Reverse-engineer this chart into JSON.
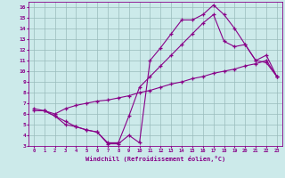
{
  "xlabel": "Windchill (Refroidissement éolien,°C)",
  "ylabel": "",
  "xlim": [
    -0.5,
    23.5
  ],
  "ylim": [
    3,
    16.5
  ],
  "xticks": [
    0,
    1,
    2,
    3,
    4,
    5,
    6,
    7,
    8,
    9,
    10,
    11,
    12,
    13,
    14,
    15,
    16,
    17,
    18,
    19,
    20,
    21,
    22,
    23
  ],
  "yticks": [
    3,
    4,
    5,
    6,
    7,
    8,
    9,
    10,
    11,
    12,
    13,
    14,
    15,
    16
  ],
  "bg_color": "#cceaea",
  "line_color": "#880088",
  "grid_color": "#99bbbb",
  "line1_x": [
    1,
    2,
    3,
    4,
    5,
    6,
    7,
    8,
    9,
    10,
    11,
    12,
    13,
    14,
    15,
    16,
    17,
    18,
    19,
    20,
    21,
    22,
    23
  ],
  "line1_y": [
    6.3,
    5.8,
    5.0,
    4.8,
    4.5,
    4.3,
    3.2,
    3.2,
    4.0,
    3.3,
    11.0,
    12.2,
    13.5,
    14.8,
    14.8,
    15.3,
    16.2,
    15.3,
    14.0,
    12.5,
    11.0,
    10.8,
    9.5
  ],
  "line2_x": [
    0,
    1,
    2,
    3,
    4,
    5,
    6,
    7,
    8,
    9,
    10,
    11,
    12,
    13,
    14,
    15,
    16,
    17,
    18,
    19,
    20,
    21,
    22,
    23
  ],
  "line2_y": [
    6.3,
    6.3,
    6.0,
    6.5,
    6.8,
    7.0,
    7.2,
    7.3,
    7.5,
    7.7,
    8.0,
    8.2,
    8.5,
    8.8,
    9.0,
    9.3,
    9.5,
    9.8,
    10.0,
    10.2,
    10.5,
    10.7,
    11.0,
    9.5
  ],
  "line3_x": [
    0,
    1,
    2,
    3,
    4,
    5,
    6,
    7,
    8,
    9,
    10,
    11,
    12,
    13,
    14,
    15,
    16,
    17,
    18,
    19,
    20,
    21,
    22,
    23
  ],
  "line3_y": [
    6.5,
    6.3,
    5.8,
    5.3,
    4.8,
    4.5,
    4.3,
    3.3,
    3.3,
    5.8,
    8.5,
    9.5,
    10.5,
    11.5,
    12.5,
    13.5,
    14.5,
    15.3,
    12.8,
    12.3,
    12.5,
    11.0,
    11.5,
    9.5
  ]
}
